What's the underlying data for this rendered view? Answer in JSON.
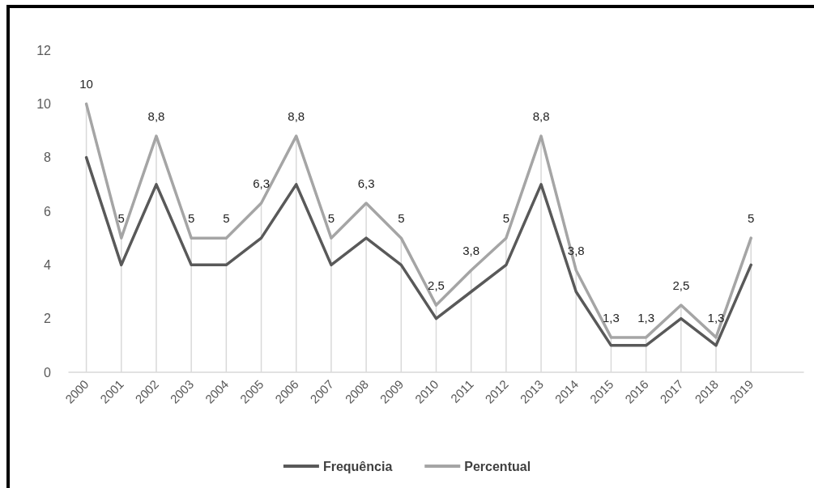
{
  "chart_data": {
    "type": "line",
    "categories": [
      "2000",
      "2001",
      "2002",
      "2003",
      "2004",
      "2005",
      "2006",
      "2007",
      "2008",
      "2009",
      "2010",
      "2011",
      "2012",
      "2013",
      "2014",
      "2015",
      "2016",
      "2017",
      "2018",
      "2019",
      null
    ],
    "series": [
      {
        "name": "Frequência",
        "color": "#595959",
        "values": [
          8,
          4,
          7,
          4,
          4,
          5,
          7,
          4,
          5,
          4,
          2,
          3,
          4,
          7,
          3,
          1,
          1,
          2,
          1,
          4,
          null
        ]
      },
      {
        "name": "Percentual",
        "color": "#a5a5a5",
        "values": [
          10,
          5,
          8.8,
          5,
          5,
          6.3,
          8.8,
          5,
          6.3,
          5,
          2.5,
          3.8,
          5,
          8.8,
          3.8,
          1.3,
          1.3,
          2.5,
          1.3,
          5,
          null
        ],
        "value_labels": [
          "10",
          "5",
          "8,8",
          "5",
          "5",
          "6,3",
          "8,8",
          "5",
          "6,3",
          "5",
          "2,5",
          "3,8",
          "5",
          "8,8",
          "3,8",
          "1,3",
          "1,3",
          "2,5",
          "1,3",
          "5",
          null
        ]
      }
    ],
    "ylim": [
      0,
      12
    ],
    "yticks": [
      0,
      2,
      4,
      6,
      8,
      10,
      12
    ],
    "grid": "x",
    "legend": "bottom",
    "marker": "none",
    "line_style": "solid"
  }
}
